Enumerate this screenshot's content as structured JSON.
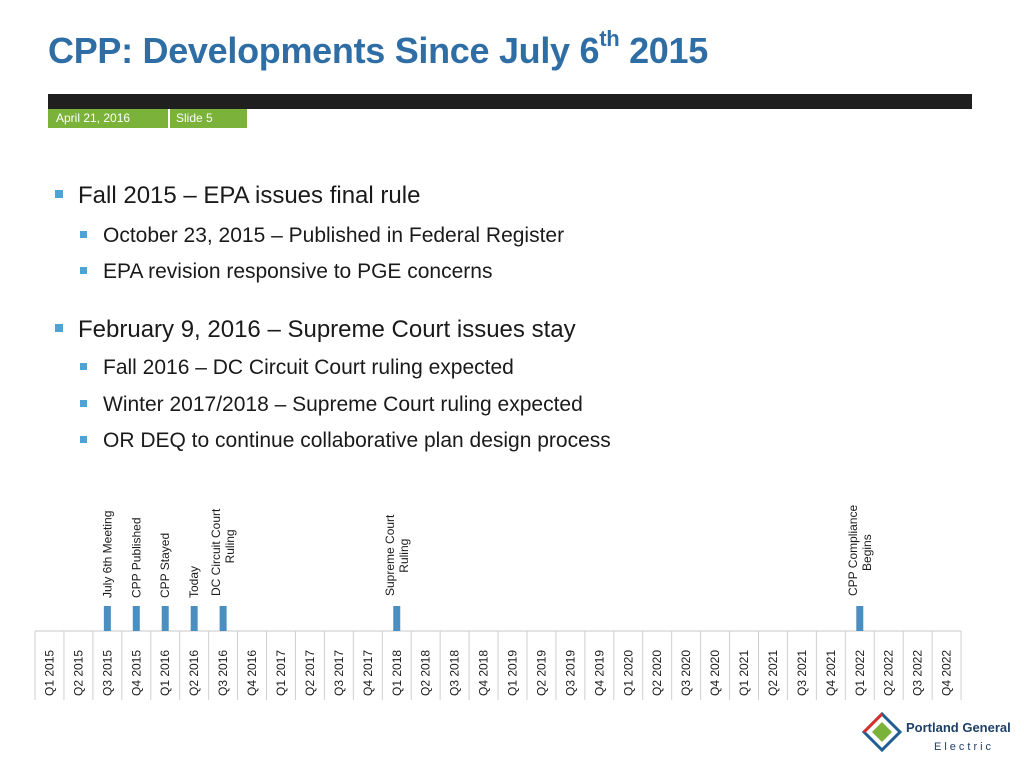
{
  "title": {
    "main": "CPP: Developments Since July 6",
    "sup": "th",
    "tail": " 2015"
  },
  "footer": {
    "date": "April 21, 2016",
    "slide": "Slide 5"
  },
  "bullets": [
    {
      "text": "Fall 2015 – EPA issues final rule",
      "sub": [
        "October 23, 2015 – Published in Federal Register",
        "EPA revision responsive to PGE concerns"
      ]
    },
    {
      "text": "February 9, 2016 – Supreme Court issues stay",
      "sub": [
        "Fall 2016 – DC Circuit Court ruling expected",
        "Winter 2017/2018 – Supreme Court ruling expected",
        "OR DEQ to continue collaborative plan design process"
      ]
    }
  ],
  "timeline": {
    "quarters": [
      "Q1 2015",
      "Q2 2015",
      "Q3 2015",
      "Q4 2015",
      "Q1 2016",
      "Q2 2016",
      "Q3 2016",
      "Q4 2016",
      "Q1 2017",
      "Q2 2017",
      "Q3 2017",
      "Q4 2017",
      "Q1 2018",
      "Q2 2018",
      "Q3 2018",
      "Q4 2018",
      "Q1 2019",
      "Q2 2019",
      "Q3 2019",
      "Q4 2019",
      "Q1 2020",
      "Q2 2020",
      "Q3 2020",
      "Q4 2020",
      "Q1 2021",
      "Q2 2021",
      "Q3 2021",
      "Q4 2021",
      "Q1 2022",
      "Q2 2022",
      "Q3 2022",
      "Q4 2022"
    ],
    "markers": [
      {
        "quarter": "Q3 2015",
        "label": [
          "July 6th Meeting"
        ]
      },
      {
        "quarter": "Q4 2015",
        "label": [
          "CPP Published"
        ]
      },
      {
        "quarter": "Q1 2016",
        "label": [
          "CPP Stayed"
        ]
      },
      {
        "quarter": "Q2 2016",
        "label": [
          "Today"
        ]
      },
      {
        "quarter": "Q3 2016",
        "label": [
          "DC Circuit Court",
          "Ruling"
        ]
      },
      {
        "quarter": "Q1 2018",
        "label": [
          "Supreme Court",
          "Ruling"
        ]
      },
      {
        "quarter": "Q1 2022",
        "label": [
          "CPP Compliance",
          "Begins"
        ]
      }
    ]
  },
  "logo": {
    "line1": "Portland General",
    "line2": "Electric"
  },
  "colors": {
    "title": "#2f6ea5",
    "accent_green": "#7ab23a",
    "bullet": "#4da3d4",
    "marker": "#4a8fc0",
    "bar_dark": "#1f1f1f"
  }
}
